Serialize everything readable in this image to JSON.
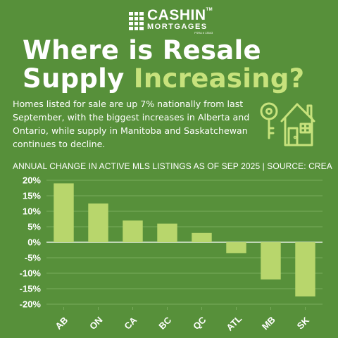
{
  "brand": {
    "name": "CASHIN",
    "trademark": "TM",
    "sub": "MORTGAGES",
    "license": "FSRA # 13543"
  },
  "headline": {
    "line1": "Where is Resale",
    "line2_plain": "Supply",
    "line2_accent": "Increasing?"
  },
  "description": "Homes listed for sale are up 7% nationally from last September, with the biggest increases in Alberta and Ontario, while supply in Manitoba and Saskatchewan continues to decline.",
  "icon": "house-and-key-icon",
  "colors": {
    "background": "#57903a",
    "accent": "#c7e27c",
    "bar": "#b8d66c",
    "gridline": "#79ab5c",
    "text": "#ffffff"
  },
  "chart_data": {
    "type": "bar",
    "title": "ANNUAL CHANGE IN ACTIVE MLS LISTINGS AS OF SEP 2025 | SOURCE: CREA",
    "categories": [
      "AB",
      "ON",
      "CA",
      "BC",
      "QC",
      "ATL",
      "MB",
      "SK"
    ],
    "values": [
      19,
      12.5,
      7,
      6,
      3,
      -3.5,
      -12,
      -17.5
    ],
    "ylim": [
      -20,
      20
    ],
    "yticks": [
      20,
      15,
      10,
      5,
      0,
      -5,
      -10,
      -15,
      -20
    ],
    "ytick_labels": [
      "20%",
      "15%",
      "10%",
      "5%",
      "0%",
      "-5%",
      "-10%",
      "-15%",
      "-20%"
    ],
    "grid": true,
    "xlabel": "",
    "ylabel": ""
  }
}
